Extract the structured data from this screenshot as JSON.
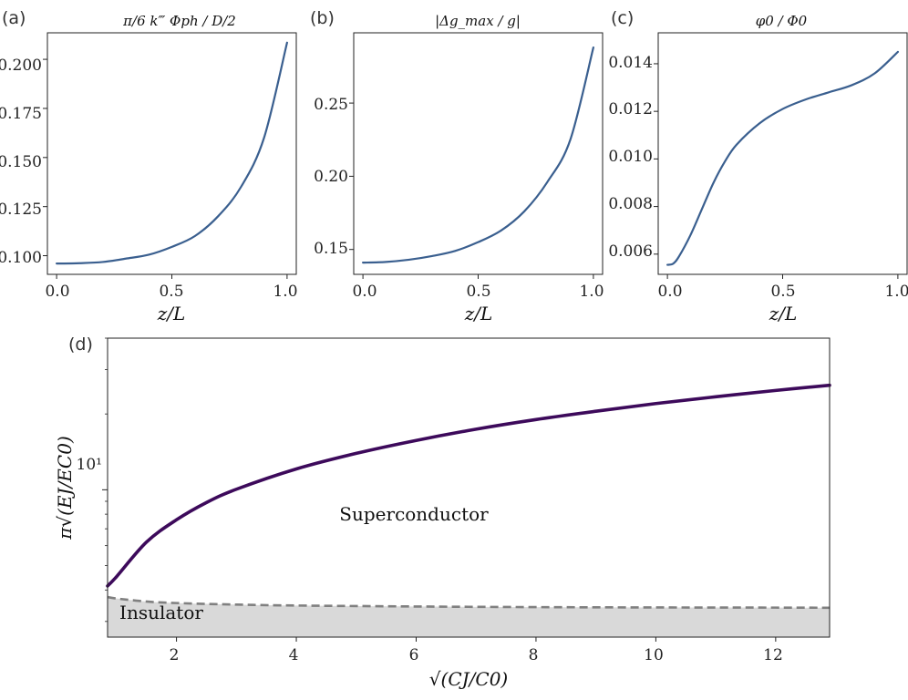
{
  "panels": [
    {
      "tag": "(a)",
      "title": "π/6 k‴ Φph / D/2",
      "xlabel": "z/L",
      "xticks": [
        "0.0",
        "0.5",
        "1.0"
      ],
      "yticks": [
        "0.100",
        "0.125",
        "0.150",
        "0.175",
        "0.200"
      ]
    },
    {
      "tag": "(b)",
      "title": "|Δg_max / g|",
      "xlabel": "z/L",
      "xticks": [
        "0.0",
        "0.5",
        "1.0"
      ],
      "yticks": [
        "0.15",
        "0.20",
        "0.25"
      ]
    },
    {
      "tag": "(c)",
      "title": "φ0 / Φ0",
      "xlabel": "z/L",
      "xticks": [
        "0.0",
        "0.5",
        "1.0"
      ],
      "yticks": [
        "0.006",
        "0.008",
        "0.010",
        "0.012",
        "0.014"
      ]
    },
    {
      "tag": "(d)",
      "title": "",
      "xlabel": "√(CJ/C0)",
      "ylabel": "π√(EJ/EC0)",
      "xticks": [
        "2",
        "4",
        "6",
        "8",
        "10",
        "12"
      ],
      "yticks": [
        "10¹"
      ],
      "regions": {
        "superconductor": "Superconductor",
        "insulator": "Insulator"
      }
    }
  ],
  "chart_data": [
    {
      "type": "line",
      "title": "π/6 k‴ Φph / D/2",
      "xlabel": "z/L",
      "ylabel": "",
      "xlim": [
        -0.04,
        1.04
      ],
      "ylim": [
        0.0905,
        0.2135
      ],
      "grid": false,
      "color": "#3a5f8f",
      "x": [
        0.0,
        0.1,
        0.2,
        0.3,
        0.4,
        0.5,
        0.6,
        0.7,
        0.8,
        0.9,
        1.0
      ],
      "y": [
        0.096,
        0.0962,
        0.0968,
        0.0985,
        0.1005,
        0.1045,
        0.11,
        0.12,
        0.135,
        0.16,
        0.2085
      ]
    },
    {
      "type": "line",
      "title": "|Δg_max / g|",
      "xlabel": "z/L",
      "ylabel": "",
      "xlim": [
        -0.04,
        1.04
      ],
      "ylim": [
        0.133,
        0.298
      ],
      "grid": false,
      "color": "#3a5f8f",
      "x": [
        0.0,
        0.1,
        0.2,
        0.3,
        0.4,
        0.5,
        0.6,
        0.7,
        0.8,
        0.9,
        1.0
      ],
      "y": [
        0.141,
        0.1415,
        0.143,
        0.1455,
        0.149,
        0.155,
        0.163,
        0.176,
        0.196,
        0.225,
        0.288
      ]
    },
    {
      "type": "line",
      "title": "φ0 / Φ0",
      "xlabel": "z/L",
      "ylabel": "",
      "xlim": [
        -0.04,
        1.04
      ],
      "ylim": [
        0.00515,
        0.0153
      ],
      "grid": false,
      "color": "#3a5f8f",
      "x": [
        0.0,
        0.025,
        0.05,
        0.1,
        0.15,
        0.2,
        0.25,
        0.3,
        0.4,
        0.5,
        0.6,
        0.7,
        0.8,
        0.9,
        1.0
      ],
      "y": [
        0.00555,
        0.0056,
        0.0059,
        0.0068,
        0.0079,
        0.009,
        0.0099,
        0.0106,
        0.0115,
        0.0121,
        0.0125,
        0.0128,
        0.0131,
        0.0136,
        0.0145
      ]
    },
    {
      "type": "area",
      "title": "",
      "xlabel": "√(CJ/C0)",
      "ylabel": "π√(EJ/EC0)",
      "xlim": [
        0.85,
        12.9
      ],
      "ylim": [
        2.6,
        40
      ],
      "ylog": true,
      "grid": false,
      "series": [
        {
          "name": "",
          "color": "#3d0a5b",
          "style": "solid",
          "x": [
            0.9,
            1,
            1.5,
            2,
            2.5,
            3,
            4,
            5,
            6,
            7,
            8,
            9,
            10,
            11,
            12,
            12.9
          ],
          "y": [
            4.15,
            4.52,
            6.2,
            7.6,
            8.9,
            10.05,
            12.1,
            13.95,
            15.7,
            17.4,
            19.0,
            20.5,
            22.0,
            23.4,
            24.8,
            26.0
          ]
        },
        {
          "name": "",
          "color": "#808080",
          "style": "dashed",
          "fill_below": "#d9d9d9",
          "x": [
            0.9,
            1,
            1.5,
            2,
            3,
            4,
            6,
            8,
            10,
            12,
            12.9
          ],
          "y": [
            3.75,
            3.7,
            3.6,
            3.55,
            3.5,
            3.47,
            3.44,
            3.42,
            3.41,
            3.405,
            3.4
          ]
        }
      ]
    }
  ]
}
